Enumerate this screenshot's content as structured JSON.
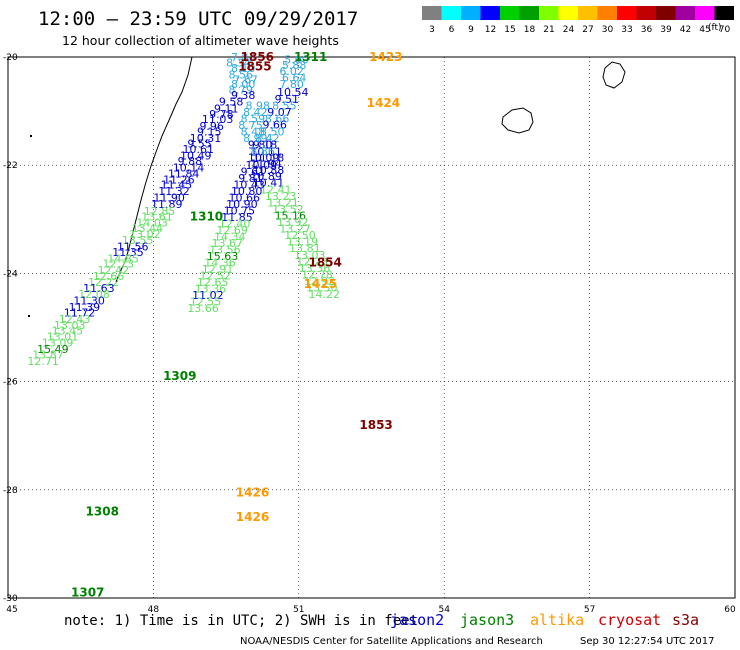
{
  "header": {
    "title": "12:00 – 23:59 UTC 09/29/2017",
    "subtitle": "12 hour collection of altimeter wave heights"
  },
  "color_scale": {
    "unit": "(ft)",
    "bins": [
      {
        "label": "3",
        "color": "#808080"
      },
      {
        "label": "6",
        "color": "#00ffff"
      },
      {
        "label": "9",
        "color": "#00b0ff"
      },
      {
        "label": "12",
        "color": "#0000ff"
      },
      {
        "label": "15",
        "color": "#00d000"
      },
      {
        "label": "18",
        "color": "#00a000"
      },
      {
        "label": "21",
        "color": "#80ff00"
      },
      {
        "label": "24",
        "color": "#ffff00"
      },
      {
        "label": "27",
        "color": "#ffc000"
      },
      {
        "label": "30",
        "color": "#ff8000"
      },
      {
        "label": "33",
        "color": "#ff0000"
      },
      {
        "label": "36",
        "color": "#c00000"
      },
      {
        "label": "39",
        "color": "#800000"
      },
      {
        "label": "42",
        "color": "#a000a0"
      },
      {
        "label": "45",
        "color": "#ff00ff"
      },
      {
        "label": "70",
        "color": "#000000"
      }
    ]
  },
  "axes": {
    "lon_ticks": [
      "45",
      "48",
      "51",
      "54",
      "57",
      "60"
    ],
    "lat_ticks": [
      "-20",
      "-22",
      "-24",
      "-26",
      "-28",
      "-30"
    ],
    "lon_range": [
      45,
      60
    ],
    "lat_range": [
      -30,
      -20
    ]
  },
  "satellites": [
    {
      "name": "jason2",
      "color": "#0000cc"
    },
    {
      "name": "jason3",
      "color": "#008000"
    },
    {
      "name": "altika",
      "color": "#ff9900"
    },
    {
      "name": "cryosat",
      "color": "#cc0000"
    },
    {
      "name": "s3a",
      "color": "#800000"
    }
  ],
  "footer": {
    "note": "note: 1) Time is in UTC; 2) SWH is in feet",
    "credit": "NOAA/NESDIS Center for Satellite Applications and Research",
    "timestamp": "Sep 30 12:27:54 UTC 2017"
  },
  "pass_labels": [
    {
      "text": "1856",
      "lon": 49.8,
      "lat": -20.0,
      "color": "#800000"
    },
    {
      "text": "1855",
      "lon": 49.75,
      "lat": -20.18,
      "color": "#800000"
    },
    {
      "text": "1311",
      "lon": 50.9,
      "lat": -20.0,
      "color": "#008000"
    },
    {
      "text": "1423",
      "lon": 52.45,
      "lat": -20.0,
      "color": "#ff9900"
    },
    {
      "text": "1424",
      "lon": 52.4,
      "lat": -20.85,
      "color": "#ff9900"
    },
    {
      "text": "1310",
      "lon": 48.75,
      "lat": -22.95,
      "color": "#008000"
    },
    {
      "text": "1854",
      "lon": 51.2,
      "lat": -23.8,
      "color": "#800000"
    },
    {
      "text": "1425",
      "lon": 51.1,
      "lat": -24.2,
      "color": "#ff9900"
    },
    {
      "text": "1309",
      "lon": 48.2,
      "lat": -25.9,
      "color": "#008000"
    },
    {
      "text": "1853",
      "lon": 52.25,
      "lat": -26.8,
      "color": "#800000"
    },
    {
      "text": "1426",
      "lon": 49.7,
      "lat": -28.05,
      "color": "#ff9900"
    },
    {
      "text": "1426",
      "lon": 49.7,
      "lat": -28.5,
      "color": "#ff9900"
    },
    {
      "text": "1308",
      "lon": 46.6,
      "lat": -28.4,
      "color": "#008000"
    },
    {
      "text": "1307",
      "lon": 46.3,
      "lat": -29.9,
      "color": "#008000"
    }
  ],
  "observations": [
    {
      "t": "7.83",
      "lon": 49.6,
      "lat": -20.0,
      "c": "#33aadd"
    },
    {
      "t": "8.34",
      "lon": 49.5,
      "lat": -20.1,
      "c": "#33aadd"
    },
    {
      "t": "8.10",
      "lon": 49.6,
      "lat": -20.2,
      "c": "#33aadd"
    },
    {
      "t": "8.56",
      "lon": 49.55,
      "lat": -20.32,
      "c": "#33aadd"
    },
    {
      "t": "7.67",
      "lon": 49.65,
      "lat": -20.42,
      "c": "#33aadd"
    },
    {
      "t": "8.00",
      "lon": 49.6,
      "lat": -20.5,
      "c": "#33aadd"
    },
    {
      "t": "8.79",
      "lon": 49.55,
      "lat": -20.6,
      "c": "#33aadd"
    },
    {
      "t": "9.38",
      "lon": 49.6,
      "lat": -20.7,
      "c": "#0000cc"
    },
    {
      "t": "9.58",
      "lon": 49.35,
      "lat": -20.82,
      "c": "#0000cc"
    },
    {
      "t": "9.11",
      "lon": 49.25,
      "lat": -20.95,
      "c": "#0000cc"
    },
    {
      "t": "9.78",
      "lon": 49.15,
      "lat": -21.05,
      "c": "#0000cc"
    },
    {
      "t": "11.03",
      "lon": 49.0,
      "lat": -21.15,
      "c": "#0000cc"
    },
    {
      "t": "9.96",
      "lon": 48.95,
      "lat": -21.28,
      "c": "#0000cc"
    },
    {
      "t": "9.15",
      "lon": 48.9,
      "lat": -21.38,
      "c": "#0000cc"
    },
    {
      "t": "10.31",
      "lon": 48.75,
      "lat": -21.5,
      "c": "#0000cc"
    },
    {
      "t": "9.55",
      "lon": 48.7,
      "lat": -21.6,
      "c": "#0000cc"
    },
    {
      "t": "10.61",
      "lon": 48.6,
      "lat": -21.7,
      "c": "#0000cc"
    },
    {
      "t": "10.49",
      "lon": 48.55,
      "lat": -21.82,
      "c": "#0000cc"
    },
    {
      "t": "9.88",
      "lon": 48.5,
      "lat": -21.92,
      "c": "#0000cc"
    },
    {
      "t": "10.14",
      "lon": 48.4,
      "lat": -22.04,
      "c": "#0000cc"
    },
    {
      "t": "11.84",
      "lon": 48.3,
      "lat": -22.15,
      "c": "#0000cc"
    },
    {
      "t": "11.26",
      "lon": 48.2,
      "lat": -22.26,
      "c": "#0000cc"
    },
    {
      "t": "11.45",
      "lon": 48.15,
      "lat": -22.36,
      "c": "#0000cc"
    },
    {
      "t": "11.32",
      "lon": 48.1,
      "lat": -22.48,
      "c": "#0000cc"
    },
    {
      "t": "11.90",
      "lon": 48.0,
      "lat": -22.6,
      "c": "#0000cc"
    },
    {
      "t": "11.89",
      "lon": 47.95,
      "lat": -22.72,
      "c": "#0000cc"
    },
    {
      "t": "12.85",
      "lon": 47.8,
      "lat": -22.85,
      "c": "#66dd66"
    },
    {
      "t": "13.61",
      "lon": 47.75,
      "lat": -22.95,
      "c": "#66dd66"
    },
    {
      "t": "14.03",
      "lon": 47.65,
      "lat": -23.06,
      "c": "#66dd66"
    },
    {
      "t": "13.44",
      "lon": 47.55,
      "lat": -23.16,
      "c": "#66dd66"
    },
    {
      "t": "13.02",
      "lon": 47.5,
      "lat": -23.27,
      "c": "#66dd66"
    },
    {
      "t": "13.55",
      "lon": 47.35,
      "lat": -23.38,
      "c": "#66dd66"
    },
    {
      "t": "11.56",
      "lon": 47.25,
      "lat": -23.5,
      "c": "#0000cc"
    },
    {
      "t": "11.35",
      "lon": 47.15,
      "lat": -23.6,
      "c": "#0000cc"
    },
    {
      "t": "14.85",
      "lon": 47.05,
      "lat": -23.72,
      "c": "#66dd66"
    },
    {
      "t": "12.73",
      "lon": 46.95,
      "lat": -23.82,
      "c": "#66dd66"
    },
    {
      "t": "12.42",
      "lon": 46.85,
      "lat": -23.94,
      "c": "#66dd66"
    },
    {
      "t": "12.66",
      "lon": 46.75,
      "lat": -24.05,
      "c": "#66dd66"
    },
    {
      "t": "12.22",
      "lon": 46.65,
      "lat": -24.16,
      "c": "#66dd66"
    },
    {
      "t": "11.63",
      "lon": 46.55,
      "lat": -24.27,
      "c": "#0000cc"
    },
    {
      "t": "12.08",
      "lon": 46.45,
      "lat": -24.38,
      "c": "#66dd66"
    },
    {
      "t": "11.30",
      "lon": 46.35,
      "lat": -24.5,
      "c": "#0000cc"
    },
    {
      "t": "11.39",
      "lon": 46.25,
      "lat": -24.62,
      "c": "#0000cc"
    },
    {
      "t": "11.72",
      "lon": 46.15,
      "lat": -24.72,
      "c": "#0000cc"
    },
    {
      "t": "12.43",
      "lon": 46.05,
      "lat": -24.84,
      "c": "#66dd66"
    },
    {
      "t": "13.03",
      "lon": 45.95,
      "lat": -24.95,
      "c": "#66dd66"
    },
    {
      "t": "13.45",
      "lon": 45.9,
      "lat": -25.06,
      "c": "#66dd66"
    },
    {
      "t": "13.01",
      "lon": 45.8,
      "lat": -25.17,
      "c": "#66dd66"
    },
    {
      "t": "13.09",
      "lon": 45.7,
      "lat": -25.28,
      "c": "#66dd66"
    },
    {
      "t": "15.49",
      "lon": 45.6,
      "lat": -25.4,
      "c": "#008000"
    },
    {
      "t": "13.87",
      "lon": 45.5,
      "lat": -25.5,
      "c": "#66dd66"
    },
    {
      "t": "12.71",
      "lon": 45.4,
      "lat": -25.62,
      "c": "#66dd66"
    },
    {
      "t": "5.90",
      "lon": 50.7,
      "lat": -20.05,
      "c": "#33aadd"
    },
    {
      "t": "5.88",
      "lon": 50.65,
      "lat": -20.15,
      "c": "#33aadd"
    },
    {
      "t": "6.02",
      "lon": 50.6,
      "lat": -20.26,
      "c": "#33aadd"
    },
    {
      "t": "6.64",
      "lon": 50.65,
      "lat": -20.38,
      "c": "#33aadd"
    },
    {
      "t": "7.80",
      "lon": 50.6,
      "lat": -20.5,
      "c": "#33aadd"
    },
    {
      "t": "10.54",
      "lon": 50.55,
      "lat": -20.65,
      "c": "#0000cc"
    },
    {
      "t": "9.51",
      "lon": 50.5,
      "lat": -20.78,
      "c": "#0000cc"
    },
    {
      "t": "8.55",
      "lon": 50.45,
      "lat": -20.9,
      "c": "#33aadd"
    },
    {
      "t": "9.07",
      "lon": 50.35,
      "lat": -21.02,
      "c": "#0000cc"
    },
    {
      "t": "8.66",
      "lon": 50.3,
      "lat": -21.14,
      "c": "#33aadd"
    },
    {
      "t": "9.66",
      "lon": 50.25,
      "lat": -21.25,
      "c": "#0000cc"
    },
    {
      "t": "8.50",
      "lon": 50.2,
      "lat": -21.38,
      "c": "#33aadd"
    },
    {
      "t": "8.42",
      "lon": 50.1,
      "lat": -21.5,
      "c": "#33aadd"
    },
    {
      "t": "9.18",
      "lon": 50.05,
      "lat": -21.62,
      "c": "#0000cc"
    },
    {
      "t": "10.11",
      "lon": 50.0,
      "lat": -21.75,
      "c": "#0000cc"
    },
    {
      "t": "11.18",
      "lon": 50.05,
      "lat": -21.86,
      "c": "#0000cc"
    },
    {
      "t": "11.94",
      "lon": 50.0,
      "lat": -21.97,
      "c": "#0000cc"
    },
    {
      "t": "10.88",
      "lon": 50.05,
      "lat": -22.09,
      "c": "#0000cc"
    },
    {
      "t": "10.89",
      "lon": 50.0,
      "lat": -22.2,
      "c": "#0000cc"
    },
    {
      "t": "10.41",
      "lon": 50.05,
      "lat": -22.32,
      "c": "#0000cc"
    },
    {
      "t": "12.41",
      "lon": 50.2,
      "lat": -22.45,
      "c": "#66dd66"
    },
    {
      "t": "13.23",
      "lon": 50.3,
      "lat": -22.57,
      "c": "#66dd66"
    },
    {
      "t": "13.21",
      "lon": 50.35,
      "lat": -22.69,
      "c": "#66dd66"
    },
    {
      "t": "13.52",
      "lon": 50.45,
      "lat": -22.81,
      "c": "#66dd66"
    },
    {
      "t": "15.16",
      "lon": 50.5,
      "lat": -22.93,
      "c": "#008000"
    },
    {
      "t": "13.92",
      "lon": 50.55,
      "lat": -23.05,
      "c": "#66dd66"
    },
    {
      "t": "13.27",
      "lon": 50.6,
      "lat": -23.17,
      "c": "#66dd66"
    },
    {
      "t": "12.50",
      "lon": 50.7,
      "lat": -23.29,
      "c": "#66dd66"
    },
    {
      "t": "13.19",
      "lon": 50.75,
      "lat": -23.41,
      "c": "#66dd66"
    },
    {
      "t": "13.81",
      "lon": 50.8,
      "lat": -23.53,
      "c": "#66dd66"
    },
    {
      "t": "13.03",
      "lon": 50.9,
      "lat": -23.66,
      "c": "#66dd66"
    },
    {
      "t": "12.23",
      "lon": 50.95,
      "lat": -23.78,
      "c": "#66dd66"
    },
    {
      "t": "13.36",
      "lon": 51.0,
      "lat": -23.9,
      "c": "#66dd66"
    },
    {
      "t": "12.78",
      "lon": 51.05,
      "lat": -24.02,
      "c": "#66dd66"
    },
    {
      "t": "12.92",
      "lon": 51.1,
      "lat": -24.14,
      "c": "#66dd66"
    },
    {
      "t": "13.50",
      "lon": 51.15,
      "lat": -24.26,
      "c": "#66dd66"
    },
    {
      "t": "14.22",
      "lon": 51.2,
      "lat": -24.38,
      "c": "#66dd66"
    },
    {
      "t": "8.98",
      "lon": 49.9,
      "lat": -20.9,
      "c": "#33aadd"
    },
    {
      "t": "8.42",
      "lon": 49.85,
      "lat": -21.02,
      "c": "#33aadd"
    },
    {
      "t": "8.59",
      "lon": 49.8,
      "lat": -21.14,
      "c": "#33aadd"
    },
    {
      "t": "8.75",
      "lon": 49.75,
      "lat": -21.26,
      "c": "#33aadd"
    },
    {
      "t": "8.48",
      "lon": 49.8,
      "lat": -21.38,
      "c": "#33aadd"
    },
    {
      "t": "8.99",
      "lon": 49.85,
      "lat": -21.5,
      "c": "#33aadd"
    },
    {
      "t": "9.80",
      "lon": 49.95,
      "lat": -21.62,
      "c": "#0000cc"
    },
    {
      "t": "8.86",
      "lon": 50.0,
      "lat": -21.74,
      "c": "#33aadd"
    },
    {
      "t": "10.09",
      "lon": 49.95,
      "lat": -21.86,
      "c": "#0000cc"
    },
    {
      "t": "10.09",
      "lon": 49.9,
      "lat": -22.0,
      "c": "#0000cc"
    },
    {
      "t": "9.61",
      "lon": 49.8,
      "lat": -22.12,
      "c": "#0000cc"
    },
    {
      "t": "9.81",
      "lon": 49.75,
      "lat": -22.24,
      "c": "#0000cc"
    },
    {
      "t": "10.43",
      "lon": 49.65,
      "lat": -22.36,
      "c": "#0000cc"
    },
    {
      "t": "10.80",
      "lon": 49.6,
      "lat": -22.48,
      "c": "#0000cc"
    },
    {
      "t": "10.66",
      "lon": 49.55,
      "lat": -22.6,
      "c": "#0000cc"
    },
    {
      "t": "10.90",
      "lon": 49.5,
      "lat": -22.72,
      "c": "#0000cc"
    },
    {
      "t": "10.75",
      "lon": 49.45,
      "lat": -22.84,
      "c": "#0000cc"
    },
    {
      "t": "11.85",
      "lon": 49.4,
      "lat": -22.96,
      "c": "#0000cc"
    },
    {
      "t": "12.40",
      "lon": 49.35,
      "lat": -23.08,
      "c": "#66dd66"
    },
    {
      "t": "12.69",
      "lon": 49.3,
      "lat": -23.2,
      "c": "#66dd66"
    },
    {
      "t": "14.34",
      "lon": 49.25,
      "lat": -23.32,
      "c": "#66dd66"
    },
    {
      "t": "13.67",
      "lon": 49.2,
      "lat": -23.44,
      "c": "#66dd66"
    },
    {
      "t": "13.56",
      "lon": 49.15,
      "lat": -23.56,
      "c": "#66dd66"
    },
    {
      "t": "15.63",
      "lon": 49.1,
      "lat": -23.68,
      "c": "#008000"
    },
    {
      "t": "14.36",
      "lon": 49.05,
      "lat": -23.8,
      "c": "#66dd66"
    },
    {
      "t": "12.91",
      "lon": 49.0,
      "lat": -23.92,
      "c": "#66dd66"
    },
    {
      "t": "12.52",
      "lon": 48.95,
      "lat": -24.04,
      "c": "#66dd66"
    },
    {
      "t": "12.65",
      "lon": 48.9,
      "lat": -24.16,
      "c": "#66dd66"
    },
    {
      "t": "13.36",
      "lon": 48.85,
      "lat": -24.28,
      "c": "#66dd66"
    },
    {
      "t": "11.02",
      "lon": 48.8,
      "lat": -24.4,
      "c": "#0000cc"
    },
    {
      "t": "12.55",
      "lon": 48.75,
      "lat": -24.52,
      "c": "#66dd66"
    },
    {
      "t": "13.66",
      "lon": 48.7,
      "lat": -24.64,
      "c": "#66dd66"
    }
  ]
}
